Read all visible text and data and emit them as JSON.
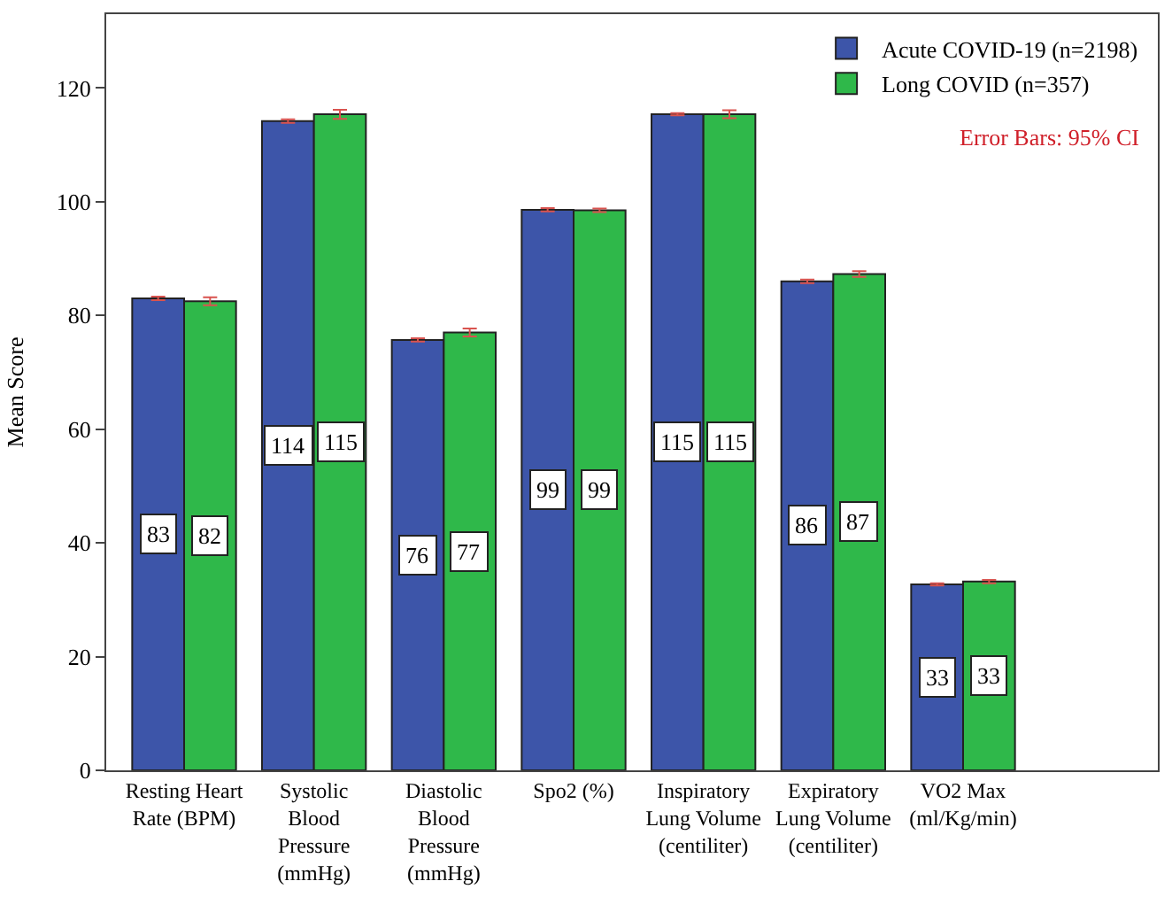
{
  "chart_data": {
    "type": "bar",
    "ylabel": "Mean Score",
    "categories": [
      "Resting Heart Rate (BPM)",
      "Systolic Blood Pressure (mmHg)",
      "Diastolic Blood Pressure (mmHg)",
      "Spo2 (%)",
      "Inspiratory Lung Volume (centiliter)",
      "Expiratory Lung Volume (centiliter)",
      "VO2 Max (ml/Kg/min)"
    ],
    "series": [
      {
        "name": "Acute COVID-19 (n=2198)",
        "color": "#3d55a9",
        "values": [
          83.0,
          114.2,
          75.7,
          98.6,
          115.4,
          86.0,
          32.7
        ],
        "errors": [
          0.3,
          0.3,
          0.3,
          0.3,
          0.2,
          0.3,
          0.2
        ],
        "value_labels": [
          "83",
          "114",
          "76",
          "99",
          "115",
          "86",
          "33"
        ]
      },
      {
        "name": "Long COVID (n=357)",
        "color": "#2fb84a",
        "values": [
          82.5,
          115.4,
          77.0,
          98.5,
          115.4,
          87.3,
          33.2
        ],
        "errors": [
          0.7,
          0.8,
          0.7,
          0.3,
          0.7,
          0.5,
          0.3
        ],
        "value_labels": [
          "82",
          "115",
          "77",
          "99",
          "115",
          "87",
          "33"
        ]
      }
    ],
    "ylim": [
      0,
      133
    ],
    "yticks": [
      0,
      20,
      40,
      60,
      80,
      100,
      120
    ],
    "legend": "top right",
    "annotations": [
      "Error Bars: 95% CI"
    ]
  }
}
